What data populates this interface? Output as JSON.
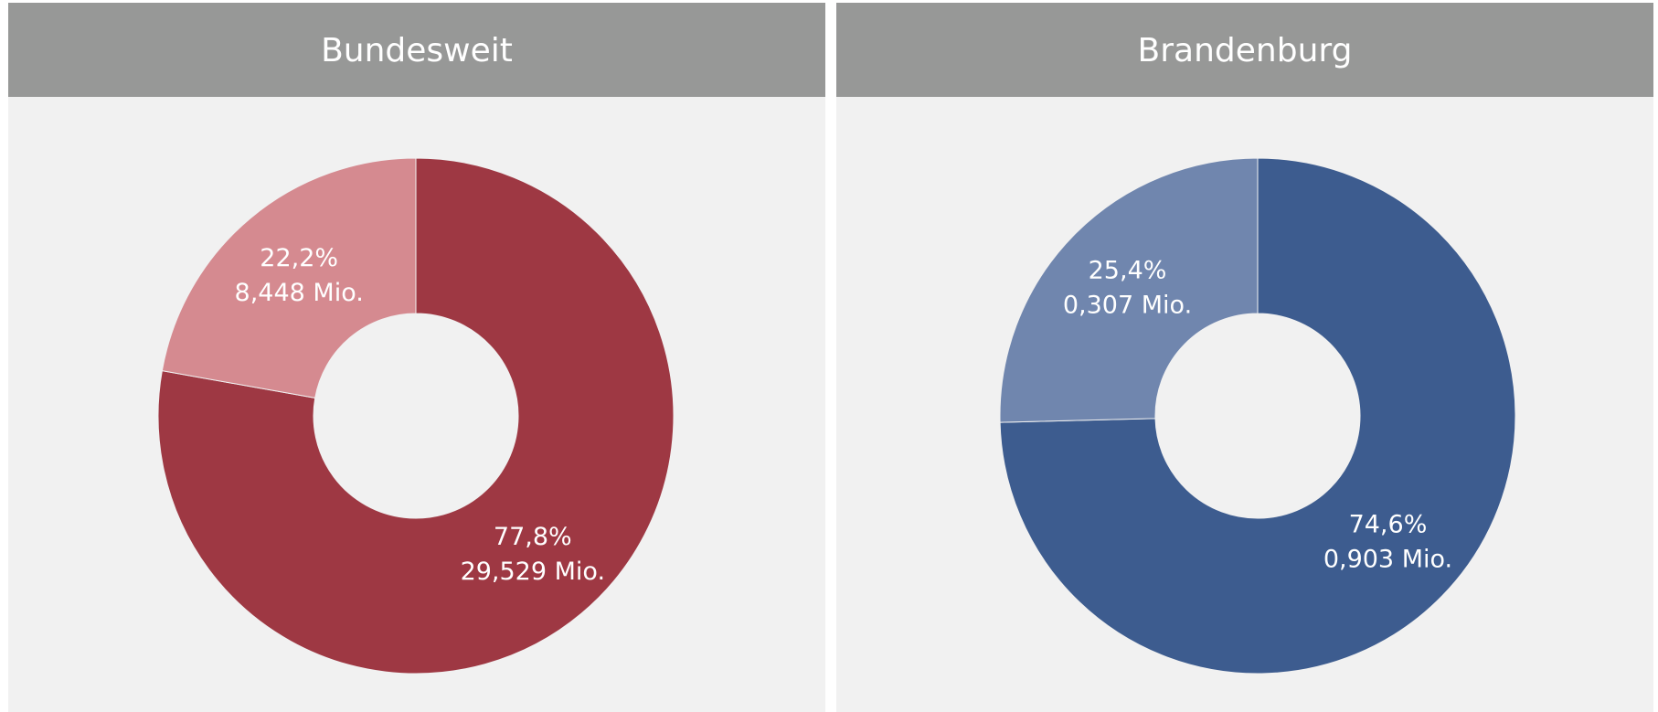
{
  "chart_data": [
    {
      "type": "pie",
      "title": "Bundesweit",
      "values": [
        77.8,
        22.2
      ],
      "value_labels": [
        "77,8%",
        "22,2%"
      ],
      "amounts": [
        29.529,
        8.448
      ],
      "amount_labels": [
        "29,529 Mio.",
        "8,448 Mio."
      ],
      "colors": [
        "#9e3843",
        "#d58a90"
      ]
    },
    {
      "type": "pie",
      "title": "Brandenburg",
      "values": [
        74.6,
        25.4
      ],
      "value_labels": [
        "74,6%",
        "25,4%"
      ],
      "amounts": [
        0.903,
        0.307
      ],
      "amount_labels": [
        "0,903 Mio.",
        "0,307 Mio."
      ],
      "colors": [
        "#3d5c8f",
        "#7086ae"
      ]
    }
  ]
}
